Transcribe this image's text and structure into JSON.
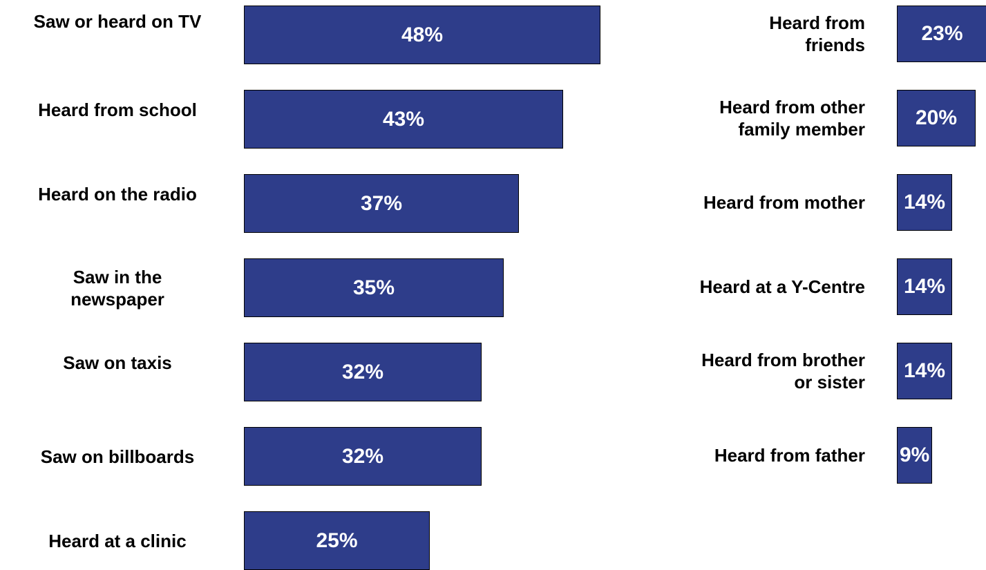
{
  "chart_data": [
    {
      "type": "bar",
      "orientation": "horizontal",
      "bar_color": "#2e3d8a",
      "categories": [
        "Saw or heard on TV",
        "Heard from school",
        "Heard on the radio",
        "Saw in the newspaper",
        "Saw on taxis",
        "Saw on billboards",
        "Heard at a clinic"
      ],
      "values": [
        48,
        43,
        37,
        35,
        32,
        32,
        25
      ],
      "data_labels": [
        "48%",
        "43%",
        "37%",
        "35%",
        "32%",
        "32%",
        "25%"
      ]
    },
    {
      "type": "bar",
      "orientation": "horizontal",
      "bar_color": "#2e3d8a",
      "categories": [
        "Heard from friends",
        "Heard from other family member",
        "Heard from mother",
        "Heard at a Y-Centre",
        "Heard from brother or sister",
        "Heard from father"
      ],
      "values": [
        23,
        20,
        14,
        14,
        14,
        9
      ],
      "data_labels": [
        "23%",
        "20%",
        "14%",
        "14%",
        "14%",
        "9%"
      ]
    }
  ]
}
